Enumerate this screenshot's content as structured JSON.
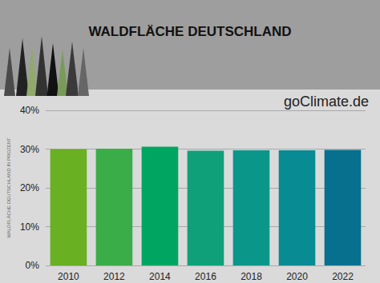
{
  "chart_data": {
    "type": "bar",
    "title": "WALDFLÄCHE DEUTSCHLAND",
    "y_label": "WALDFLÄCHE DEUTSCHLAND IN PROZENT",
    "annotation": "goClimate.de",
    "categories": [
      "2010",
      "2012",
      "2014",
      "2016",
      "2018",
      "2020",
      "2022"
    ],
    "values": [
      30.0,
      30.1,
      30.6,
      29.6,
      29.7,
      29.7,
      29.8
    ],
    "colors": [
      "#6ab023",
      "#3aad48",
      "#00a562",
      "#0fa07a",
      "#0a978a",
      "#088b92",
      "#07708e"
    ],
    "ylim": [
      0,
      40
    ],
    "yticks": [
      {
        "value": 0,
        "label": "0%"
      },
      {
        "value": 10,
        "label": "10%"
      },
      {
        "value": 20,
        "label": "20%"
      },
      {
        "value": 30,
        "label": "30%"
      },
      {
        "value": 40,
        "label": "40%"
      }
    ],
    "grid": true
  }
}
